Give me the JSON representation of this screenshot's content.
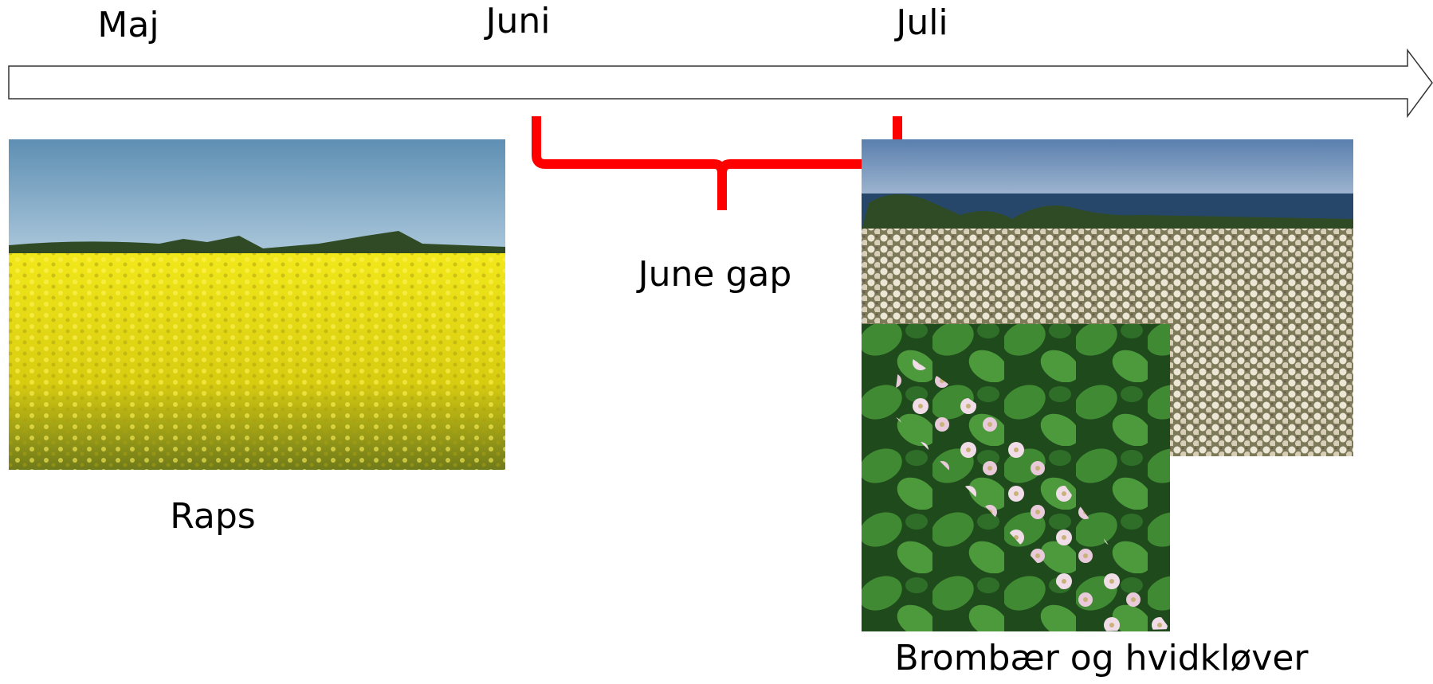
{
  "timeline": {
    "months": [
      "Maj",
      "Juni",
      "Juli"
    ]
  },
  "gap_label": "June gap",
  "photos": [
    {
      "caption": "Raps"
    },
    {
      "caption": "Brombær og hvidkløver"
    }
  ]
}
